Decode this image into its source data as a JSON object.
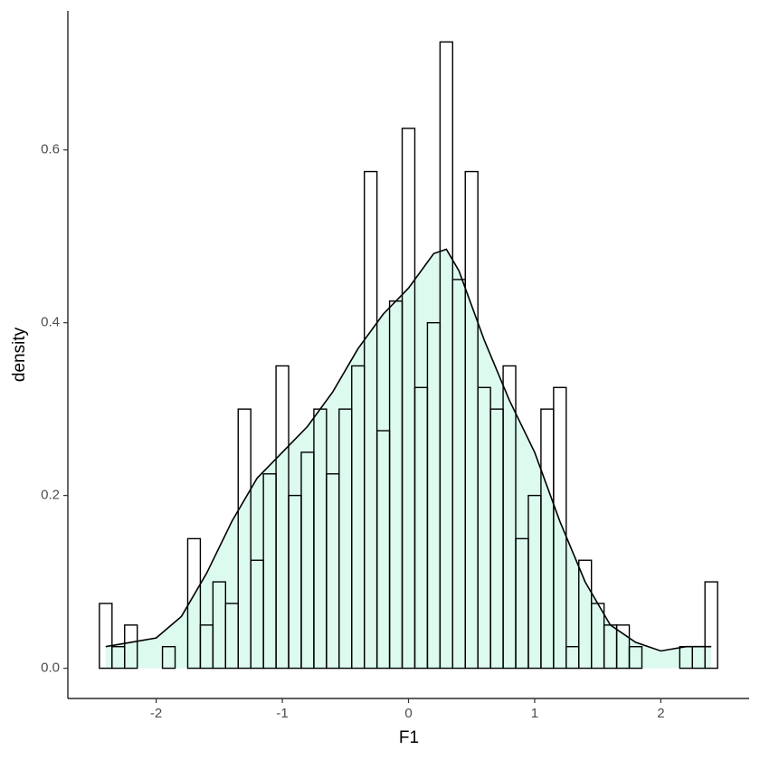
{
  "chart_data": {
    "type": "histogram",
    "xlabel": "F1",
    "ylabel": "density",
    "bins": [
      -2.45,
      -2.35,
      -2.25,
      -2.15,
      -2.05,
      -1.95,
      -1.85,
      -1.75,
      -1.65,
      -1.55,
      -1.45,
      -1.35,
      -1.25,
      -1.15,
      -1.05,
      -0.95,
      -0.85,
      -0.75,
      -0.65,
      -0.55,
      -0.45,
      -0.35,
      -0.25,
      -0.15,
      -0.05,
      0.05,
      0.15,
      0.25,
      0.35,
      0.45,
      0.55,
      0.65,
      0.75,
      0.85,
      0.95,
      1.05,
      1.15,
      1.25,
      1.35,
      1.45,
      1.55,
      1.65,
      1.75,
      1.85,
      1.95,
      2.05,
      2.15,
      2.25,
      2.35,
      2.45
    ],
    "values": [
      0.075,
      0.025,
      0.05,
      0,
      0,
      0.025,
      0,
      0.15,
      0.05,
      0.1,
      0.075,
      0.3,
      0.125,
      0.225,
      0.35,
      0.2,
      0.25,
      0.3,
      0.225,
      0.3,
      0.35,
      0.575,
      0.275,
      0.425,
      0.625,
      0.325,
      0.4,
      0.725,
      0.45,
      0.575,
      0.325,
      0.3,
      0.35,
      0.15,
      0.2,
      0.3,
      0.325,
      0.025,
      0.125,
      0.075,
      0.05,
      0.05,
      0.025,
      0,
      0,
      0,
      0.025,
      0.025,
      0.1
    ],
    "bar_edge_color": "#000000",
    "density": {
      "color": "#000000",
      "fill": "#dcfaee",
      "x": [
        -2.4,
        -2.2,
        -2.0,
        -1.8,
        -1.6,
        -1.4,
        -1.2,
        -1.0,
        -0.8,
        -0.6,
        -0.4,
        -0.2,
        0.0,
        0.2,
        0.3,
        0.4,
        0.6,
        0.8,
        1.0,
        1.2,
        1.4,
        1.6,
        1.8,
        2.0,
        2.2,
        2.4
      ],
      "y": [
        0.025,
        0.03,
        0.035,
        0.06,
        0.11,
        0.17,
        0.22,
        0.25,
        0.28,
        0.32,
        0.37,
        0.41,
        0.44,
        0.48,
        0.485,
        0.46,
        0.38,
        0.31,
        0.25,
        0.17,
        0.1,
        0.05,
        0.03,
        0.02,
        0.025,
        0.025
      ]
    },
    "xlim": [
      -2.7,
      2.7
    ],
    "ylim": [
      -0.035,
      0.761
    ],
    "xticks": [
      -2,
      -1,
      0,
      1,
      2
    ],
    "yticks": [
      {
        "value": 0,
        "label": "0.0"
      },
      0.2,
      0.4,
      0.6
    ]
  }
}
